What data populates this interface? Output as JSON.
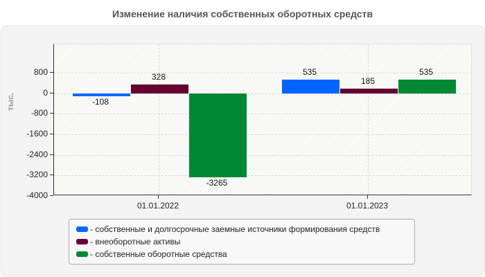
{
  "title": "Изменение наличия собственных оборотных средств",
  "chart_data": {
    "type": "bar",
    "title": "Изменение наличия собственных оборотных средств",
    "xlabel": "",
    "ylabel": "тыс.",
    "ylim": [
      -4000,
      1900
    ],
    "yticks": [
      800,
      0,
      -800,
      -1600,
      -2400,
      -3200,
      -4000
    ],
    "categories": [
      "01.01.2022",
      "01.01.2023"
    ],
    "series": [
      {
        "name": "собственные и долгосрочные заемные источники формирования средств",
        "color": "#0066ff",
        "values": [
          -108,
          535
        ]
      },
      {
        "name": "внеоборотные активы",
        "color": "#660033",
        "values": [
          328,
          185
        ]
      },
      {
        "name": "собственные оборотные средства",
        "color": "#008833",
        "values": [
          -3265,
          535
        ]
      }
    ],
    "grid": true,
    "legend_position": "bottom"
  },
  "legend": [
    {
      "label": "- собственные и долгосрочные заемные источники формирования средств",
      "color": "#0066ff"
    },
    {
      "label": "- внеоборотные активы",
      "color": "#660033"
    },
    {
      "label": "- собственные оборотные средства",
      "color": "#008833"
    }
  ]
}
